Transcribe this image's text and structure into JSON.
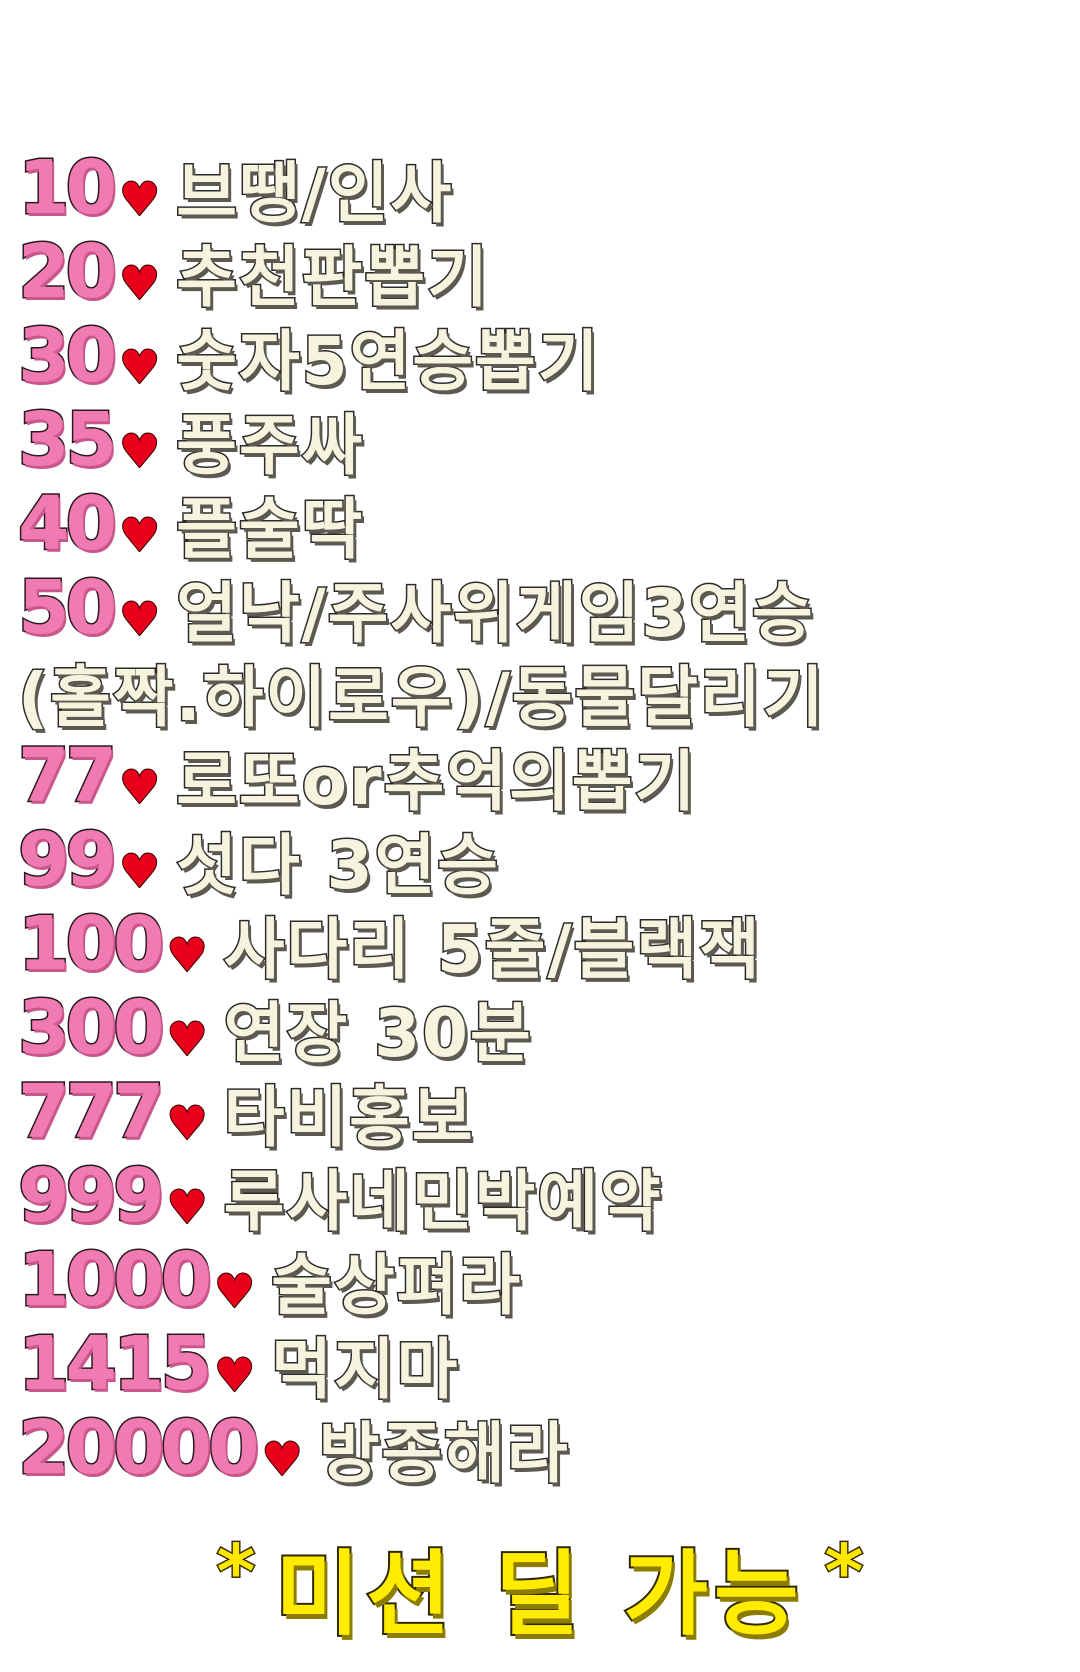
{
  "missions": [
    {
      "num": "10",
      "text": "브땡/인사"
    },
    {
      "num": "20",
      "text": "추천판뽑기"
    },
    {
      "num": "30",
      "text": "숫자5연승뽑기"
    },
    {
      "num": "35",
      "text": "풍주싸"
    },
    {
      "num": "40",
      "text": "플술딱"
    },
    {
      "num": "50",
      "text": "얼낙/주사위게임3연승"
    },
    {
      "num": "",
      "text": "(홀짝.하이로우)/동물달리기"
    },
    {
      "num": "77",
      "text": "로또or추억의뽑기"
    },
    {
      "num": "99",
      "text": "섯다 3연승"
    },
    {
      "num": "100",
      "text": "사다리 5줄/블랙잭"
    },
    {
      "num": "300",
      "text": "연장 30분"
    },
    {
      "num": "777",
      "text": "타비홍보"
    },
    {
      "num": "999",
      "text": "루사네민박예약"
    },
    {
      "num": "1000",
      "text": "술상펴라"
    },
    {
      "num": "1415",
      "text": "먹지마"
    },
    {
      "num": "20000",
      "text": "방종해라"
    }
  ],
  "heart_glyph": "♥",
  "footer": {
    "star_left": "*",
    "text": "미션 딜 가능",
    "star_right": "*"
  },
  "colors": {
    "number": "#f07bb2",
    "heart": "#e8001a",
    "mission_text": "#f6f3df",
    "footer_text": "#ffec00"
  }
}
